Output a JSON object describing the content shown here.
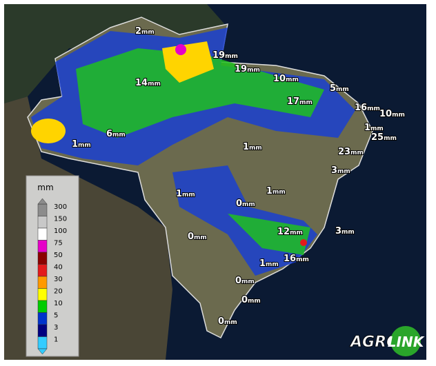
{
  "unit": "mm",
  "labels": [
    "2",
    "19",
    "19",
    "10",
    "5",
    "14",
    "17",
    "16",
    "10",
    "1",
    "25",
    "6",
    "1",
    "1",
    "23",
    "3",
    "1",
    "1",
    "0",
    "0",
    "12",
    "3",
    "16",
    "1",
    "0",
    "0",
    "0"
  ],
  "legend": {
    "title": "mm",
    "levels": [
      {
        "value": 300,
        "color": "#8c8c8c"
      },
      {
        "value": 150,
        "color": "#c8c8c8"
      },
      {
        "value": 100,
        "color": "#ffffff"
      },
      {
        "value": 75,
        "color": "#e600c8"
      },
      {
        "value": 50,
        "color": "#8b0000"
      },
      {
        "value": 40,
        "color": "#e31a1c"
      },
      {
        "value": 30,
        "color": "#ff9900"
      },
      {
        "value": 20,
        "color": "#ffff00"
      },
      {
        "value": 10,
        "color": "#00cc00"
      },
      {
        "value": 5,
        "color": "#0033cc"
      },
      {
        "value": 3,
        "color": "#000080"
      },
      {
        "value": 1,
        "color": "#33ccff"
      }
    ]
  },
  "logo": {
    "left": "AGRO",
    "right": "LINK"
  }
}
